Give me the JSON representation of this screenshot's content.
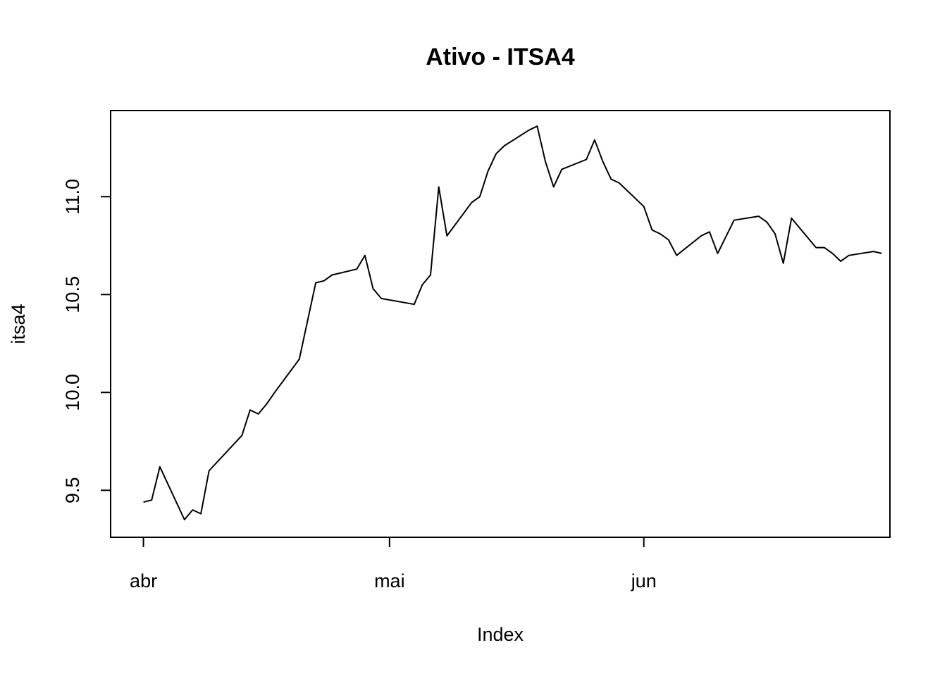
{
  "chart_data": {
    "type": "line",
    "title": "Ativo - ITSA4",
    "xlabel": "Index",
    "ylabel": "itsa4",
    "x_ticks": [
      {
        "label": "abr",
        "date": "2020-04-01"
      },
      {
        "label": "mai",
        "date": "2020-05-01"
      },
      {
        "label": "jun",
        "date": "2020-06-01"
      }
    ],
    "xlim": [
      "2020-03-28",
      "2020-07-01"
    ],
    "y_ticks": [
      9.5,
      10.0,
      10.5,
      11.0
    ],
    "y_tick_labels": [
      "9.5",
      "10.0",
      "10.5",
      "11.0"
    ],
    "ylim": [
      9.26,
      11.44
    ],
    "grid": false,
    "legend": "none",
    "line_color": "#000000",
    "series": [
      {
        "x": [
          "2020-04-01",
          "2020-04-02",
          "2020-04-03",
          "2020-04-06",
          "2020-04-07",
          "2020-04-08",
          "2020-04-09",
          "2020-04-13",
          "2020-04-14",
          "2020-04-15",
          "2020-04-16",
          "2020-04-17",
          "2020-04-20",
          "2020-04-22",
          "2020-04-23",
          "2020-04-24",
          "2020-04-27",
          "2020-04-28",
          "2020-04-29",
          "2020-04-30",
          "2020-05-04",
          "2020-05-05",
          "2020-05-06",
          "2020-05-07",
          "2020-05-08",
          "2020-05-11",
          "2020-05-12",
          "2020-05-13",
          "2020-05-14",
          "2020-05-15",
          "2020-05-18",
          "2020-05-19",
          "2020-05-20",
          "2020-05-21",
          "2020-05-22",
          "2020-05-25",
          "2020-05-26",
          "2020-05-27",
          "2020-05-28",
          "2020-05-29",
          "2020-06-01",
          "2020-06-02",
          "2020-06-03",
          "2020-06-04",
          "2020-06-05",
          "2020-06-08",
          "2020-06-09",
          "2020-06-10",
          "2020-06-12",
          "2020-06-15",
          "2020-06-16",
          "2020-06-17",
          "2020-06-18",
          "2020-06-19",
          "2020-06-22",
          "2020-06-23",
          "2020-06-24",
          "2020-06-25",
          "2020-06-26",
          "2020-06-29",
          "2020-06-30"
        ],
        "y": [
          9.44,
          9.45,
          9.62,
          9.35,
          9.4,
          9.38,
          9.6,
          9.78,
          9.91,
          9.89,
          9.94,
          10.0,
          10.17,
          10.56,
          10.57,
          10.6,
          10.63,
          10.7,
          10.53,
          10.48,
          10.45,
          10.55,
          10.6,
          11.05,
          10.8,
          10.97,
          11.0,
          11.13,
          11.22,
          11.26,
          11.34,
          11.36,
          11.18,
          11.05,
          11.14,
          11.19,
          11.29,
          11.18,
          11.09,
          11.07,
          10.95,
          10.83,
          10.81,
          10.78,
          10.7,
          10.8,
          10.82,
          10.71,
          10.88,
          10.9,
          10.87,
          10.81,
          10.66,
          10.89,
          10.74,
          10.74,
          10.71,
          10.67,
          10.7,
          10.72,
          10.71
        ]
      }
    ]
  }
}
